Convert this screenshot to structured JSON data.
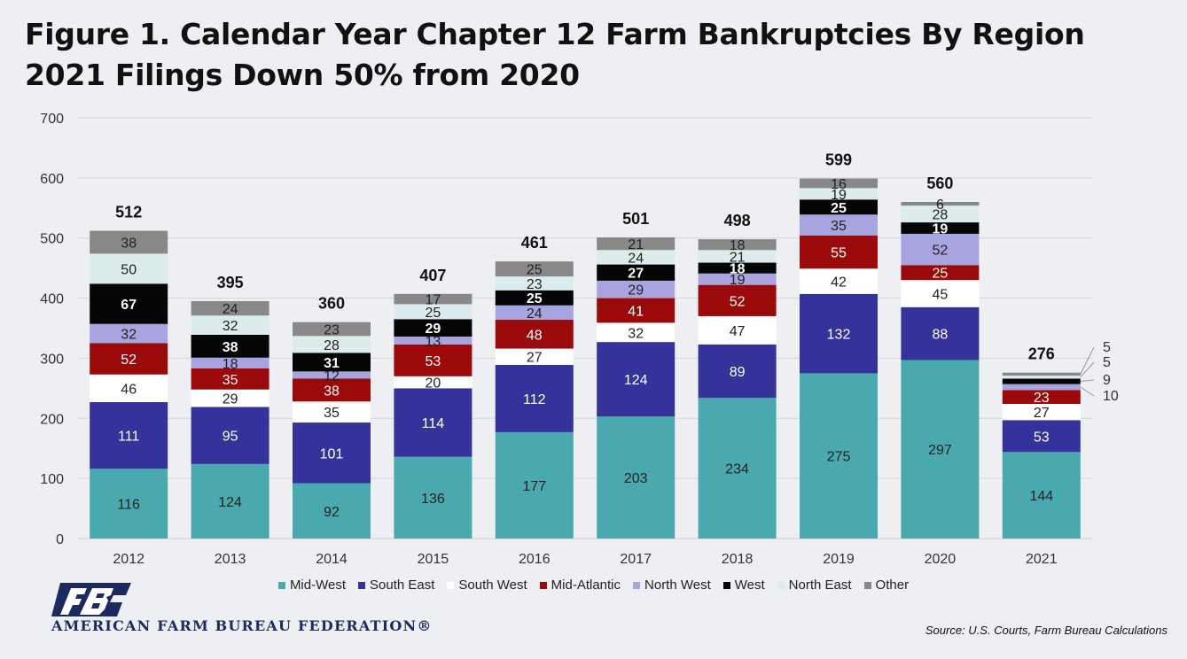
{
  "title_line1": "Figure 1. Calendar Year Chapter 12 Farm Bankruptcies By Region",
  "title_line2": "2021 Filings Down 50% from 2020",
  "org_name": "AMERICAN FARM BUREAU FEDERATION®",
  "source": "Source: U.S. Courts, Farm Bureau Calculations",
  "chart_data": {
    "type": "bar",
    "stacked": true,
    "categories": [
      "2012",
      "2013",
      "2014",
      "2015",
      "2016",
      "2017",
      "2018",
      "2019",
      "2020",
      "2021"
    ],
    "ylim": [
      0,
      700
    ],
    "yticks": [
      0,
      100,
      200,
      300,
      400,
      500,
      600,
      700
    ],
    "grid": true,
    "legend_position": "bottom",
    "series": [
      {
        "name": "Mid-West",
        "color": "#4aa9ae",
        "values": [
          116,
          124,
          92,
          136,
          177,
          203,
          234,
          275,
          297,
          144
        ]
      },
      {
        "name": "South East",
        "color": "#35329b",
        "values": [
          111,
          95,
          101,
          114,
          112,
          124,
          89,
          132,
          88,
          53
        ]
      },
      {
        "name": "South West",
        "color": "#ffffff",
        "values": [
          46,
          29,
          35,
          20,
          27,
          32,
          47,
          42,
          45,
          27
        ]
      },
      {
        "name": "Mid-Atlantic",
        "color": "#9b0a0a",
        "values": [
          52,
          35,
          38,
          53,
          48,
          41,
          52,
          55,
          25,
          23
        ]
      },
      {
        "name": "North West",
        "color": "#a8a4e0",
        "values": [
          32,
          18,
          12,
          13,
          24,
          29,
          19,
          35,
          52,
          10
        ]
      },
      {
        "name": "West",
        "color": "#050505",
        "values": [
          67,
          38,
          31,
          29,
          25,
          27,
          18,
          25,
          19,
          9
        ]
      },
      {
        "name": "North East",
        "color": "#dcecec",
        "values": [
          50,
          32,
          28,
          25,
          23,
          24,
          21,
          19,
          28,
          5
        ]
      },
      {
        "name": "Other",
        "color": "#888888",
        "values": [
          38,
          24,
          23,
          17,
          25,
          21,
          18,
          16,
          6,
          5
        ]
      }
    ],
    "totals": [
      512,
      395,
      360,
      407,
      461,
      501,
      498,
      599,
      560,
      276
    ]
  }
}
